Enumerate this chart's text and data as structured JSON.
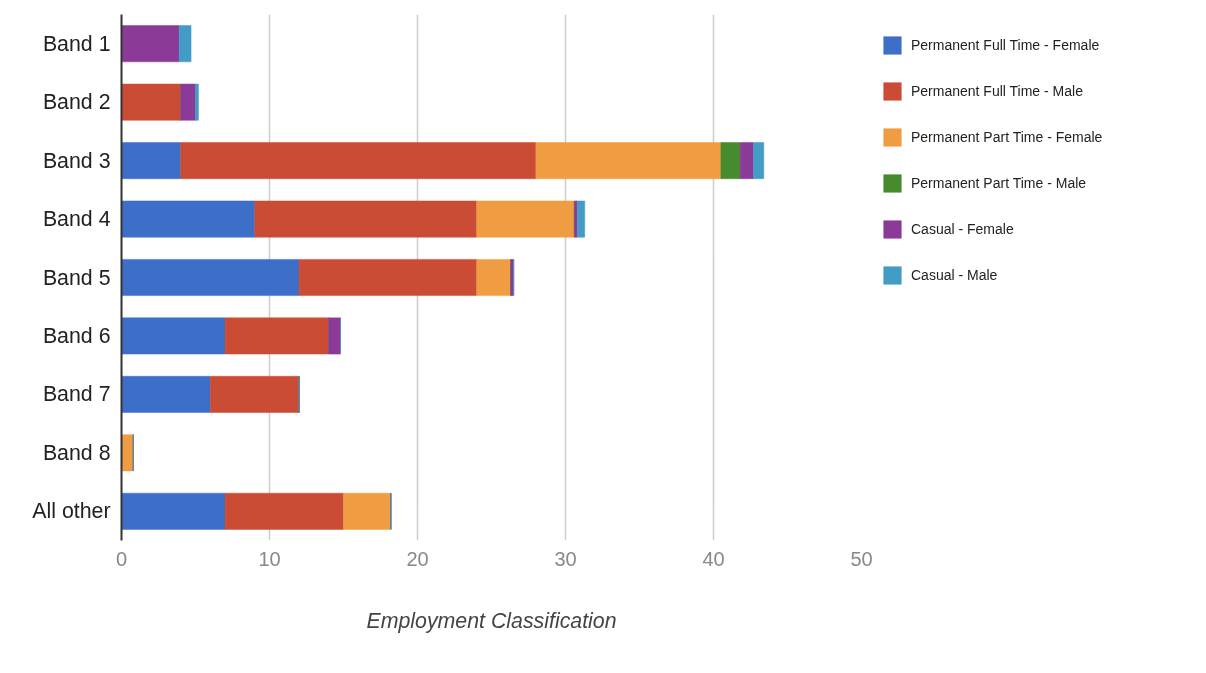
{
  "chart_data": {
    "type": "bar",
    "orientation": "horizontal",
    "stacked": true,
    "xlabel": "Employment Classification",
    "categories": [
      "Band 1",
      "Band 2",
      "Band 3",
      "Band 4",
      "Band 5",
      "Band 6",
      "Band 7",
      "Band 8",
      "All other"
    ],
    "series": [
      {
        "name": "Permanent Full Time - Female",
        "color": "#3d6fc8",
        "values": [
          0,
          0,
          4,
          9,
          12,
          7,
          6,
          0,
          7
        ]
      },
      {
        "name": "Permanent Full Time - Male",
        "color": "#cb4c34",
        "values": [
          0,
          4,
          24,
          15,
          12,
          7,
          6,
          0,
          8
        ]
      },
      {
        "name": "Permanent Part Time - Female",
        "color": "#f09c43",
        "values": [
          0,
          0,
          12.5,
          6.6,
          2.3,
          0,
          0,
          0.8,
          3.2
        ]
      },
      {
        "name": "Permanent Part Time - Male",
        "color": "#468b2d",
        "values": [
          0,
          0,
          1.3,
          0,
          0,
          0,
          0,
          0,
          0
        ]
      },
      {
        "name": "Casual - Female",
        "color": "#8c3a98",
        "values": [
          3.9,
          1.0,
          0.9,
          0.2,
          0.2,
          0.8,
          0,
          0,
          0
        ]
      },
      {
        "name": "Casual - Male",
        "color": "#439cc6",
        "values": [
          0.8,
          0.2,
          0.7,
          0.5,
          0,
          0,
          0,
          0,
          0
        ]
      }
    ],
    "xlim": [
      0,
      50
    ],
    "xticks": [
      0,
      10,
      20,
      30,
      40,
      50
    ],
    "grid": "x",
    "legend": "top right"
  }
}
